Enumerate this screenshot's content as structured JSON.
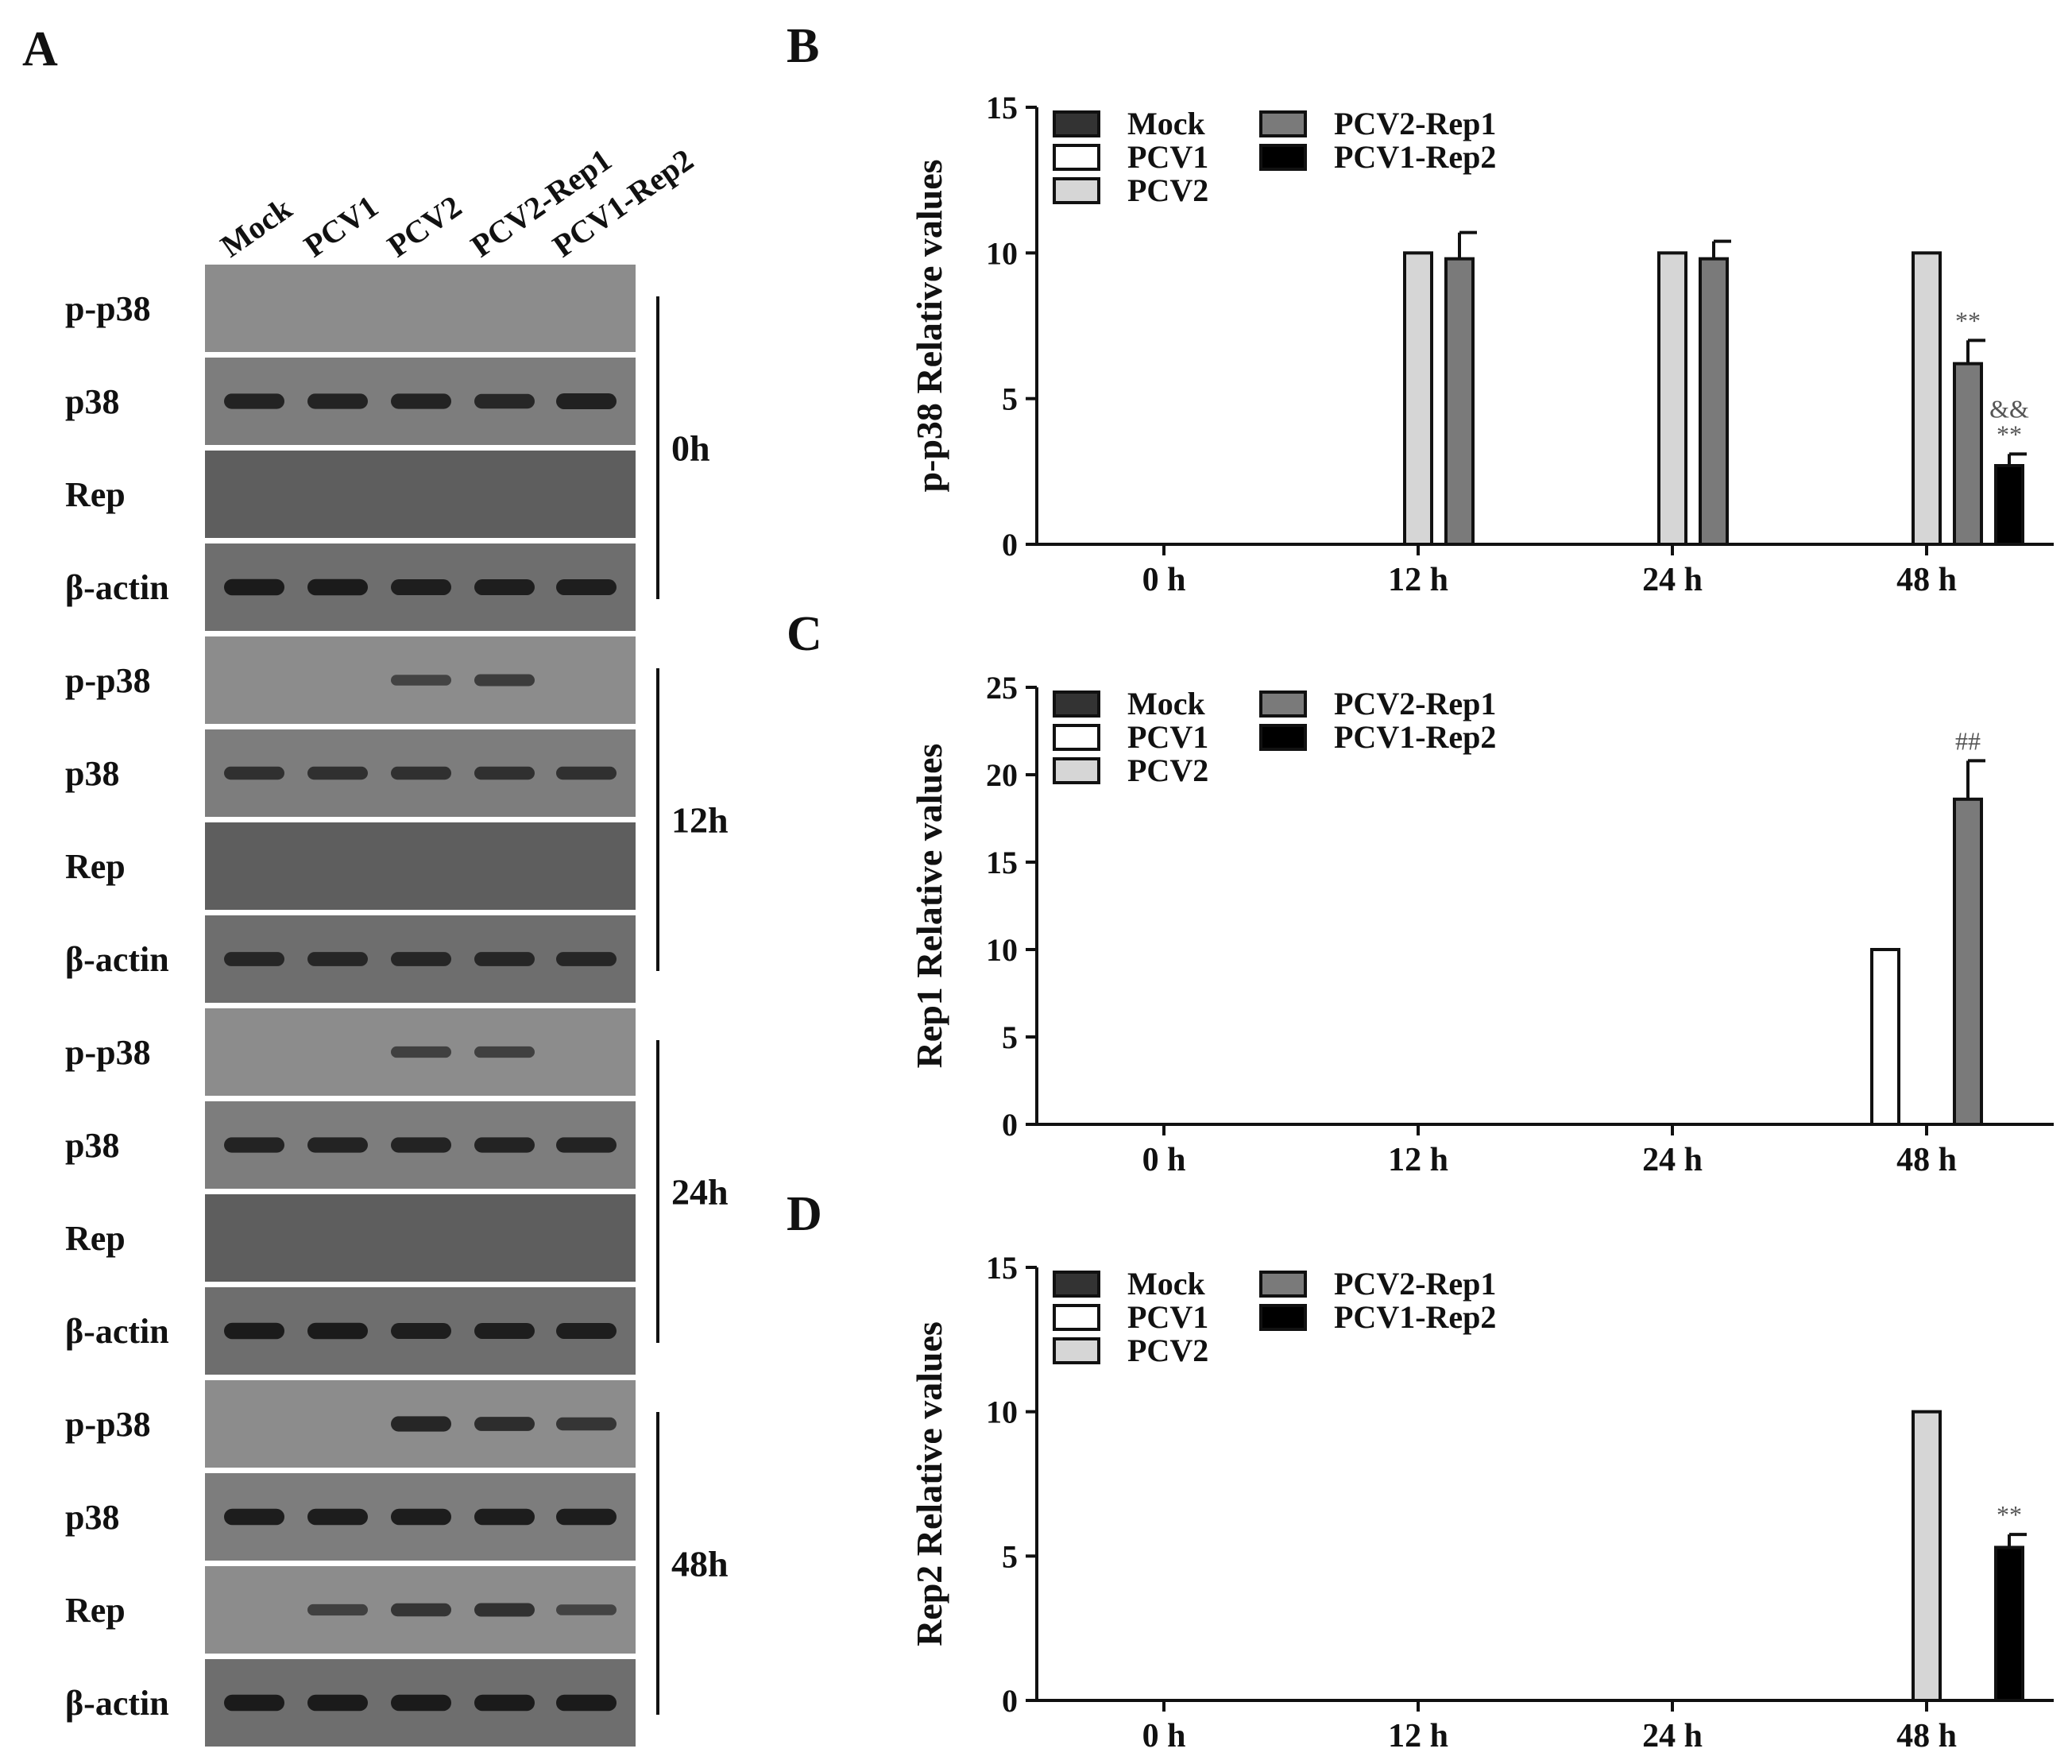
{
  "panels": {
    "A": "A",
    "B": "B",
    "C": "C",
    "D": "D"
  },
  "blot": {
    "lanes": [
      "Mock",
      "PCV1",
      "PCV2",
      "PCV2-Rep1",
      "PCV1-Rep2"
    ],
    "row_labels": [
      "p-p38",
      "p38",
      "Rep",
      "β-actin"
    ],
    "timepoints": [
      "0h",
      "12h",
      "24h",
      "48h"
    ],
    "intensity": {
      "0h": {
        "p-p38": [
          0,
          0,
          0,
          0,
          0
        ],
        "p38": [
          0.8,
          0.8,
          0.8,
          0.75,
          0.85
        ],
        "Rep": [
          0,
          0,
          0,
          0,
          0
        ],
        "β-actin": [
          0.9,
          0.9,
          0.85,
          0.85,
          0.85
        ]
      },
      "12h": {
        "p-p38": [
          0,
          0,
          0.4,
          0.5,
          0
        ],
        "p38": [
          0.6,
          0.6,
          0.6,
          0.6,
          0.6
        ],
        "Rep": [
          0,
          0,
          0,
          0,
          0
        ],
        "β-actin": [
          0.7,
          0.7,
          0.7,
          0.7,
          0.7
        ]
      },
      "24h": {
        "p-p38": [
          0,
          0,
          0.45,
          0.45,
          0
        ],
        "p38": [
          0.8,
          0.8,
          0.8,
          0.8,
          0.8
        ],
        "Rep": [
          0,
          0,
          0,
          0,
          0
        ],
        "β-actin": [
          0.9,
          0.9,
          0.85,
          0.85,
          0.85
        ]
      },
      "48h": {
        "p-p38": [
          0,
          0,
          0.8,
          0.7,
          0.6
        ],
        "p38": [
          0.9,
          0.9,
          0.9,
          0.9,
          0.9
        ],
        "Rep": [
          0,
          0.45,
          0.6,
          0.65,
          0.4
        ],
        "β-actin": [
          0.9,
          0.9,
          0.9,
          0.9,
          0.9
        ]
      }
    }
  },
  "legend_items": [
    {
      "name": "Mock",
      "color": "#333333"
    },
    {
      "name": "PCV1",
      "color": "#ffffff"
    },
    {
      "name": "PCV2",
      "color": "#d6d6d6"
    },
    {
      "name": "PCV2-Rep1",
      "color": "#7a7a7a"
    },
    {
      "name": "PCV1-Rep2",
      "color": "#000000"
    }
  ],
  "chart_data": [
    {
      "type": "bar",
      "panel": "B",
      "ylabel": "p-p38 Relative values",
      "ylim": [
        0,
        15
      ],
      "yticks": [
        0,
        5,
        10,
        15
      ],
      "categories": [
        "0 h",
        "12 h",
        "24 h",
        "48 h"
      ],
      "series": [
        {
          "name": "Mock",
          "values": [
            0,
            0,
            0,
            0
          ],
          "errors": [
            0,
            0,
            0,
            0
          ]
        },
        {
          "name": "PCV1",
          "values": [
            0,
            0,
            0,
            0
          ],
          "errors": [
            0,
            0,
            0,
            0
          ]
        },
        {
          "name": "PCV2",
          "values": [
            0,
            10,
            10,
            10
          ],
          "errors": [
            0,
            0,
            0,
            0
          ]
        },
        {
          "name": "PCV2-Rep1",
          "values": [
            0,
            9.8,
            9.8,
            6.2
          ],
          "errors": [
            0,
            0.9,
            0.6,
            0.8
          ]
        },
        {
          "name": "PCV1-Rep2",
          "values": [
            0,
            0,
            0,
            2.7
          ],
          "errors": [
            0,
            0,
            0,
            0.4
          ]
        }
      ],
      "annotations": [
        {
          "category": "48 h",
          "series": "PCV2-Rep1",
          "text": "**"
        },
        {
          "category": "48 h",
          "series": "PCV1-Rep2",
          "text": "**"
        },
        {
          "category": "48 h",
          "series": "PCV1-Rep2",
          "text": "&&"
        }
      ]
    },
    {
      "type": "bar",
      "panel": "C",
      "ylabel": "Rep1 Relative values",
      "ylim": [
        0,
        25
      ],
      "yticks": [
        0,
        5,
        10,
        15,
        20,
        25
      ],
      "categories": [
        "0 h",
        "12 h",
        "24 h",
        "48 h"
      ],
      "series": [
        {
          "name": "Mock",
          "values": [
            0,
            0,
            0,
            0
          ],
          "errors": [
            0,
            0,
            0,
            0
          ]
        },
        {
          "name": "PCV1",
          "values": [
            0,
            0,
            0,
            10
          ],
          "errors": [
            0,
            0,
            0,
            0
          ]
        },
        {
          "name": "PCV2",
          "values": [
            0,
            0,
            0,
            0
          ],
          "errors": [
            0,
            0,
            0,
            0
          ]
        },
        {
          "name": "PCV2-Rep1",
          "values": [
            0,
            0,
            0,
            18.6
          ],
          "errors": [
            0,
            0,
            0,
            2.2
          ]
        },
        {
          "name": "PCV1-Rep2",
          "values": [
            0,
            0,
            0,
            0
          ],
          "errors": [
            0,
            0,
            0,
            0
          ]
        }
      ],
      "annotations": [
        {
          "category": "48 h",
          "series": "PCV2-Rep1",
          "text": "##"
        }
      ]
    },
    {
      "type": "bar",
      "panel": "D",
      "ylabel": "Rep2 Relative values",
      "ylim": [
        0,
        15
      ],
      "yticks": [
        0,
        5,
        10,
        15
      ],
      "categories": [
        "0 h",
        "12 h",
        "24 h",
        "48 h"
      ],
      "series": [
        {
          "name": "Mock",
          "values": [
            0,
            0,
            0,
            0
          ],
          "errors": [
            0,
            0,
            0,
            0
          ]
        },
        {
          "name": "PCV1",
          "values": [
            0,
            0,
            0,
            0
          ],
          "errors": [
            0,
            0,
            0,
            0
          ]
        },
        {
          "name": "PCV2",
          "values": [
            0,
            0,
            0,
            10
          ],
          "errors": [
            0,
            0,
            0,
            0
          ]
        },
        {
          "name": "PCV2-Rep1",
          "values": [
            0,
            0,
            0,
            0
          ],
          "errors": [
            0,
            0,
            0,
            0
          ]
        },
        {
          "name": "PCV1-Rep2",
          "values": [
            0,
            0,
            0,
            5.3
          ],
          "errors": [
            0,
            0,
            0,
            0.45
          ]
        }
      ],
      "annotations": [
        {
          "category": "48 h",
          "series": "PCV1-Rep2",
          "text": "**"
        }
      ]
    }
  ]
}
